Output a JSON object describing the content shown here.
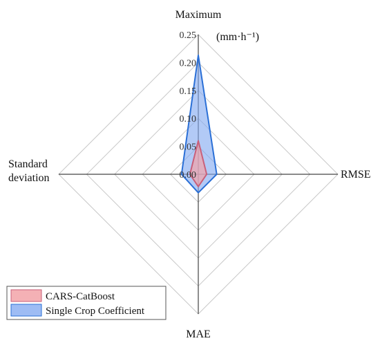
{
  "chart_data": {
    "type": "radar",
    "axes": [
      {
        "key": "top",
        "label_lines": [
          "Maximum"
        ]
      },
      {
        "key": "right",
        "label_lines": [
          "RMSE"
        ]
      },
      {
        "key": "bottom",
        "label_lines": [
          "MAE"
        ]
      },
      {
        "key": "left",
        "label_lines": [
          "Standard",
          "deviation"
        ]
      }
    ],
    "r_ticks": [
      "0.00",
      "0.05",
      "0.10",
      "0.15",
      "0.20",
      "0.25"
    ],
    "rlim": [
      0,
      0.25
    ],
    "unit": "(mm·h⁻¹)",
    "grid": true,
    "legend_position": "bottom-left",
    "series": [
      {
        "name": "Single Crop Coefficient",
        "values": [
          0.213,
          0.033,
          0.033,
          0.03
        ],
        "fill": "#7ea6f0",
        "stroke": "#2a6fd6",
        "opacity": 0.6
      },
      {
        "name": "CARS-CatBoost",
        "values": [
          0.06,
          0.015,
          0.022,
          0.015
        ],
        "fill": "#f2a3a8",
        "stroke": "#c9607a",
        "opacity": 0.7
      }
    ]
  }
}
